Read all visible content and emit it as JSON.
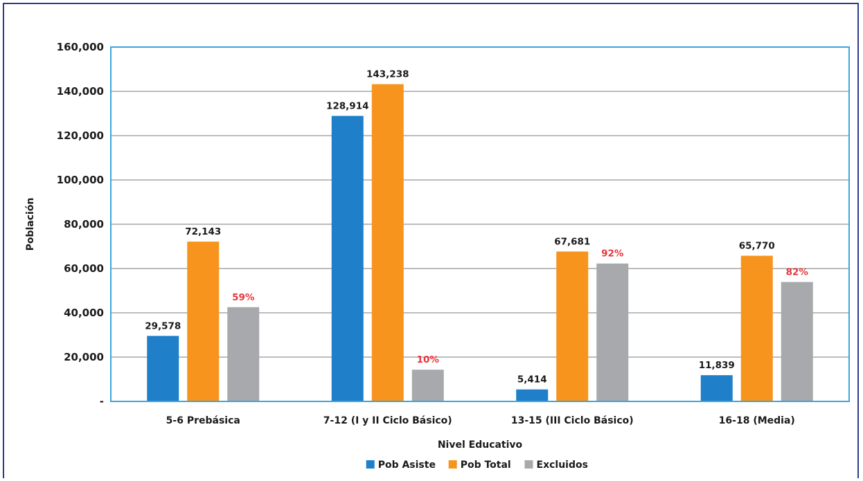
{
  "chart_data": {
    "type": "bar",
    "xlabel": "Nivel Educativo",
    "ylabel": "Población",
    "ylim": [
      0,
      160000
    ],
    "yticks": [
      {
        "value": 0,
        "label": "-"
      },
      {
        "value": 20000,
        "label": "20,000"
      },
      {
        "value": 40000,
        "label": "40,000"
      },
      {
        "value": 60000,
        "label": "60,000"
      },
      {
        "value": 80000,
        "label": "80,000"
      },
      {
        "value": 100000,
        "label": "100,000"
      },
      {
        "value": 120000,
        "label": "120,000"
      },
      {
        "value": 140000,
        "label": "140,000"
      },
      {
        "value": 160000,
        "label": "160,000"
      }
    ],
    "grid": true,
    "legend_position": "bottom",
    "categories": [
      "5-6 Prebásica",
      "7-12 (I y II Ciclo Básico)",
      "13-15 (III Ciclo Básico)",
      "16-18 (Media)"
    ],
    "series": [
      {
        "name": "Pob Asiste",
        "color": "#1f7fc9",
        "values": [
          29578,
          128914,
          5414,
          11839
        ],
        "labels": [
          "29,578",
          "128,914",
          "5,414",
          "11,839"
        ],
        "label_style": "value"
      },
      {
        "name": "Pob Total",
        "color": "#f7941d",
        "values": [
          72143,
          143238,
          67681,
          65770
        ],
        "labels": [
          "72,143",
          "143,238",
          "67,681",
          "65,770"
        ],
        "label_style": "value"
      },
      {
        "name": "Excluidos",
        "color": "#a7a9ac",
        "values": [
          42565,
          14324,
          62267,
          53931
        ],
        "labels": [
          "59%",
          "10%",
          "92%",
          "82%"
        ],
        "label_style": "percent"
      }
    ]
  }
}
